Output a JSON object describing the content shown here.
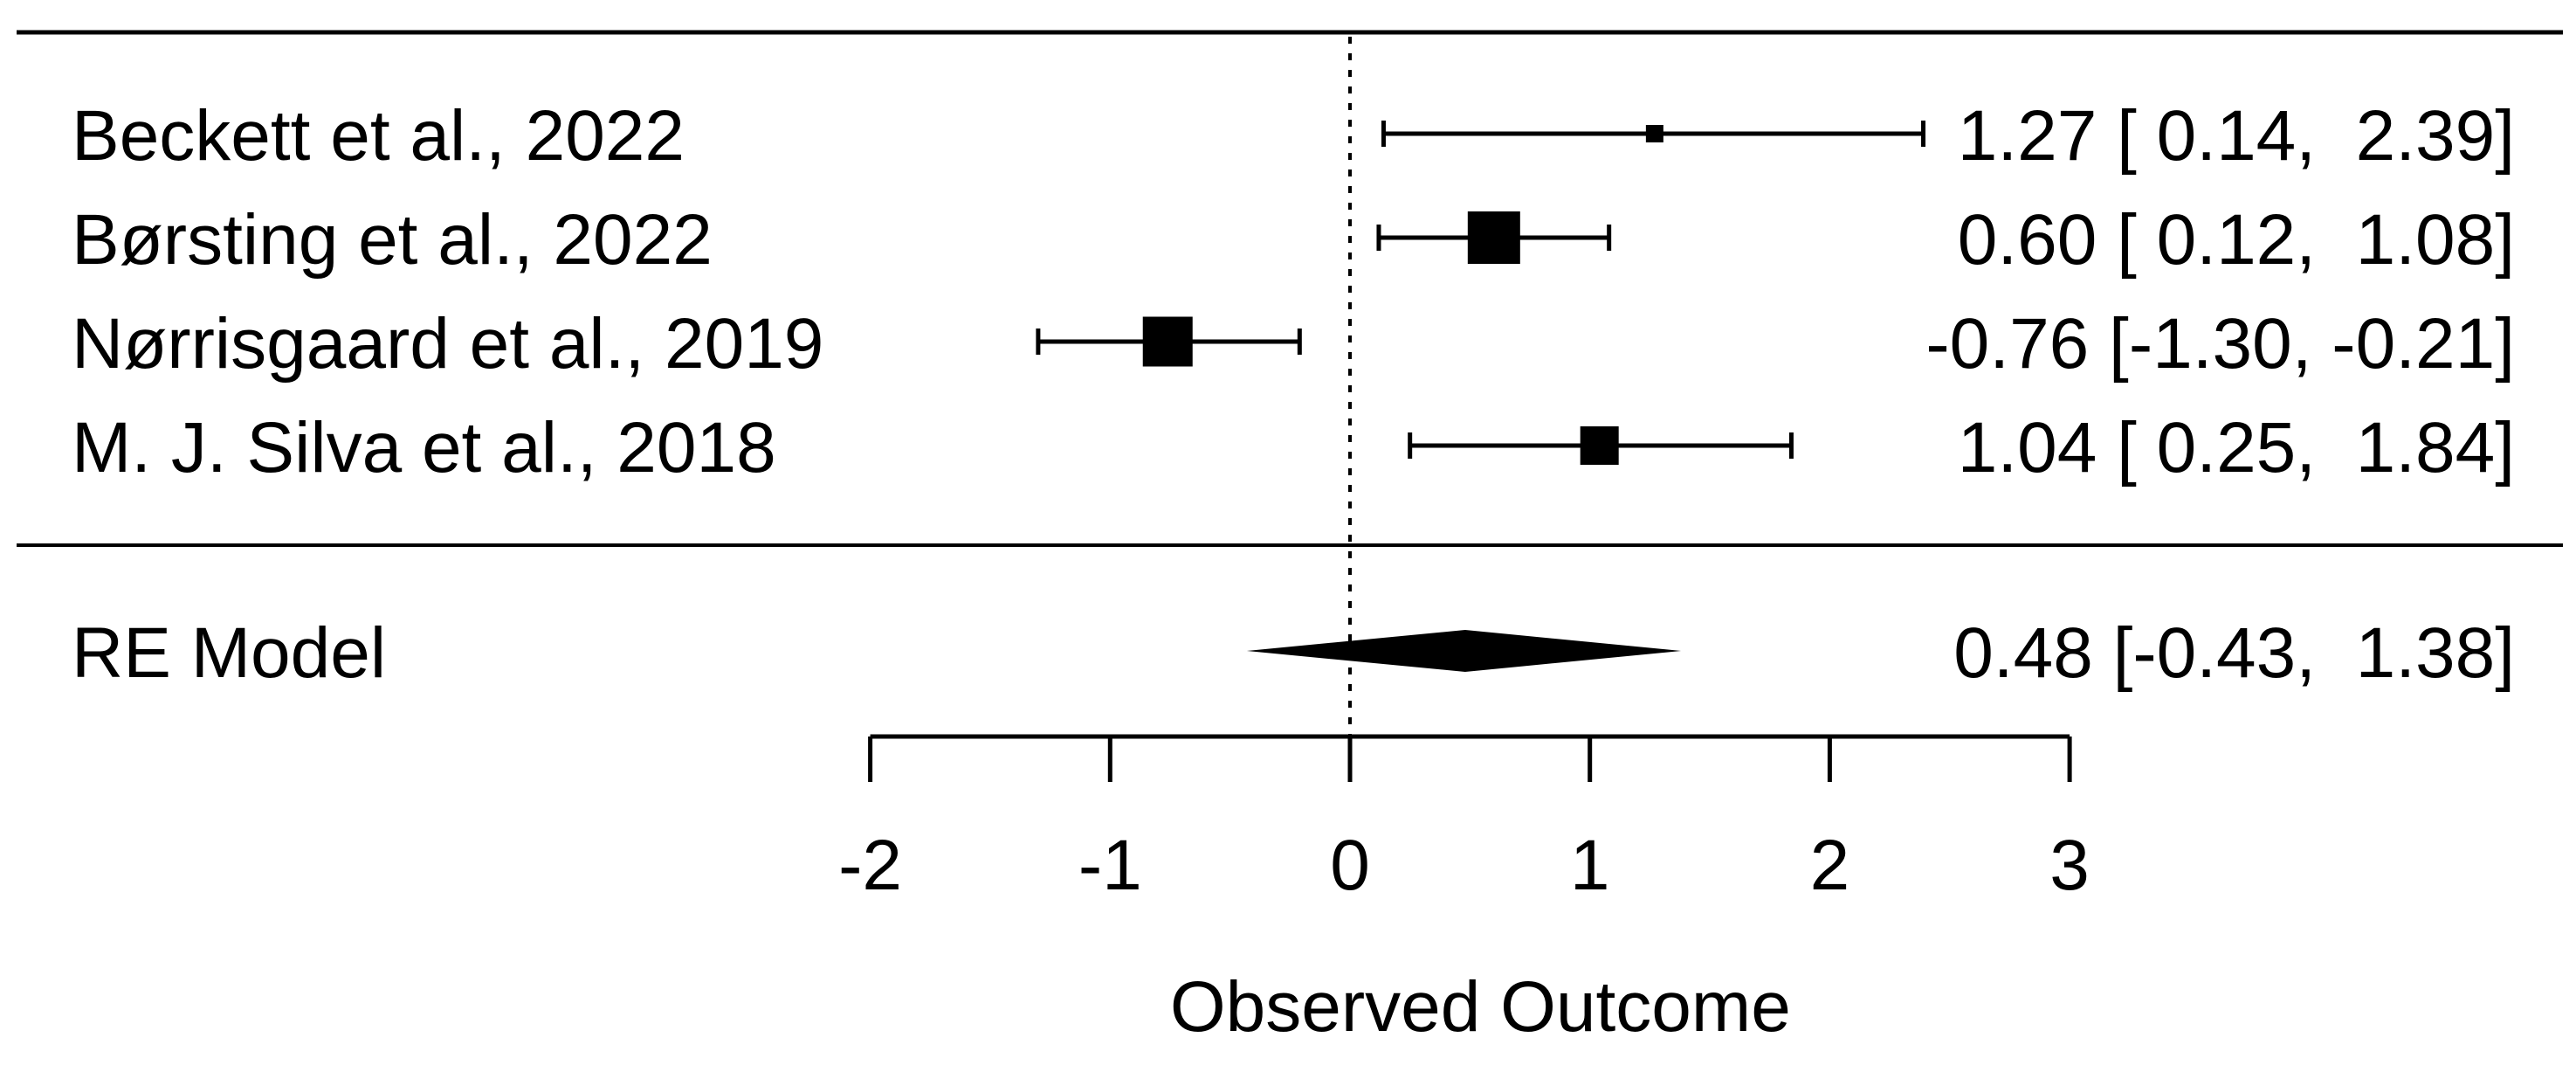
{
  "chart_data": {
    "type": "forest",
    "xlabel": "Observed Outcome",
    "axis": {
      "ticks": [
        -2,
        -1,
        0,
        1,
        2,
        3
      ],
      "tick_labels": [
        "-2",
        "-1",
        "0",
        "1",
        "2",
        "3"
      ],
      "xlim": [
        -2,
        3
      ],
      "reference_line": 0,
      "grid": false
    },
    "studies": [
      {
        "label": "Beckett et al., 2022",
        "estimate": 1.27,
        "ci_lower": 0.14,
        "ci_upper": 2.39,
        "annotation": "1.27 [ 0.14,  2.39]",
        "box_size": 20
      },
      {
        "label": "Børsting et al., 2022",
        "estimate": 0.6,
        "ci_lower": 0.12,
        "ci_upper": 1.08,
        "annotation": "0.60 [ 0.12,  1.08]",
        "box_size": 60
      },
      {
        "label": "Nørrisgaard et al., 2019",
        "estimate": -0.76,
        "ci_lower": -1.3,
        "ci_upper": -0.21,
        "annotation": "-0.76 [-1.30, -0.21]",
        "box_size": 57
      },
      {
        "label": "M. J. Silva et al., 2018",
        "estimate": 1.04,
        "ci_lower": 0.25,
        "ci_upper": 1.84,
        "annotation": "1.04 [ 0.25,  1.84]",
        "box_size": 44
      }
    ],
    "summary": {
      "label": "RE Model",
      "estimate": 0.48,
      "ci_lower": -0.43,
      "ci_upper": 1.38,
      "annotation": "0.48 [-0.43,  1.38]"
    },
    "colors": {
      "foreground": "#000000",
      "background": "#ffffff"
    }
  }
}
